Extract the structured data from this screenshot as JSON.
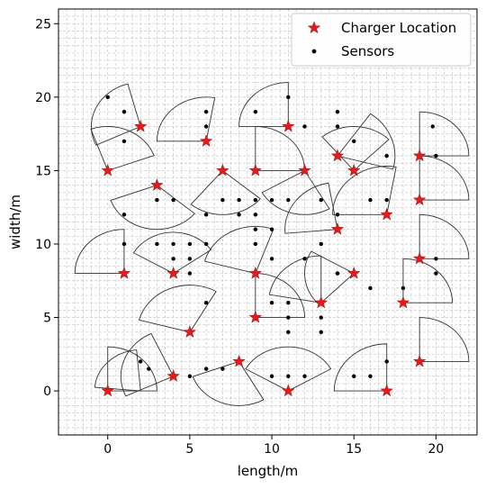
{
  "chart_data": {
    "type": "scatter",
    "title": "",
    "xlabel": "length/m",
    "ylabel": "width/m",
    "xlim": [
      -3,
      22.5
    ],
    "ylim": [
      -3,
      26
    ],
    "xticks": [
      0,
      5,
      10,
      15,
      20
    ],
    "yticks": [
      0,
      5,
      10,
      15,
      20,
      25
    ],
    "grid": true,
    "minor_grid": true,
    "legend_position": "top-right",
    "colors": {
      "charger": "#e41a1c",
      "sensor": "#000000",
      "sector": "#333333",
      "grid": "#c8c8c8"
    },
    "series": [
      {
        "name": "Charger Location",
        "marker": "star",
        "points": [
          [
            0,
            0
          ],
          [
            4,
            1
          ],
          [
            8,
            2
          ],
          [
            11,
            0
          ],
          [
            17,
            0
          ],
          [
            19,
            2
          ],
          [
            5,
            4
          ],
          [
            9,
            5
          ],
          [
            13,
            6
          ],
          [
            18,
            6
          ],
          [
            1,
            8
          ],
          [
            4,
            8
          ],
          [
            9,
            8
          ],
          [
            15,
            8
          ],
          [
            19,
            9
          ],
          [
            14,
            11
          ],
          [
            17,
            12
          ],
          [
            3,
            14
          ],
          [
            19,
            13
          ],
          [
            0,
            15
          ],
          [
            7,
            15
          ],
          [
            9,
            15
          ],
          [
            12,
            15
          ],
          [
            15,
            15
          ],
          [
            14,
            16
          ],
          [
            19,
            16
          ],
          [
            6,
            17
          ],
          [
            11,
            18
          ],
          [
            2,
            18
          ]
        ]
      },
      {
        "name": "Sensors",
        "marker": "dot",
        "points": [
          [
            2,
            2
          ],
          [
            2.5,
            1.5
          ],
          [
            5,
            1
          ],
          [
            6,
            1.5
          ],
          [
            7,
            1.5
          ],
          [
            10,
            1
          ],
          [
            11,
            1
          ],
          [
            12,
            1
          ],
          [
            15,
            1
          ],
          [
            16,
            1
          ],
          [
            17,
            2
          ],
          [
            19,
            2
          ],
          [
            0,
            20
          ],
          [
            1,
            19
          ],
          [
            1,
            17
          ],
          [
            6,
            18
          ],
          [
            6,
            19
          ],
          [
            11,
            20
          ],
          [
            9,
            19
          ],
          [
            12,
            18
          ],
          [
            14,
            19
          ],
          [
            14,
            18
          ],
          [
            15,
            17
          ],
          [
            17,
            16
          ],
          [
            19.8,
            18
          ],
          [
            20,
            16
          ],
          [
            3,
            13
          ],
          [
            4,
            13
          ],
          [
            1,
            12
          ],
          [
            9,
            13
          ],
          [
            10,
            13
          ],
          [
            11,
            13
          ],
          [
            13,
            13
          ],
          [
            14,
            12
          ],
          [
            16,
            13
          ],
          [
            17,
            13
          ],
          [
            7,
            13
          ],
          [
            8,
            13
          ],
          [
            9,
            12
          ],
          [
            8,
            12
          ],
          [
            6,
            12
          ],
          [
            1,
            10
          ],
          [
            4,
            10
          ],
          [
            5,
            10
          ],
          [
            6,
            10
          ],
          [
            4,
            9
          ],
          [
            5,
            9
          ],
          [
            3,
            10
          ],
          [
            9,
            11
          ],
          [
            10,
            11
          ],
          [
            9,
            10
          ],
          [
            10,
            9
          ],
          [
            12,
            9
          ],
          [
            13,
            10
          ],
          [
            14,
            8
          ],
          [
            5,
            8
          ],
          [
            6,
            6
          ],
          [
            10,
            6
          ],
          [
            11,
            6
          ],
          [
            11,
            5
          ],
          [
            11,
            4
          ],
          [
            13,
            5
          ],
          [
            13,
            4
          ],
          [
            14,
            8
          ],
          [
            16,
            7
          ],
          [
            18,
            7
          ],
          [
            20,
            9
          ],
          [
            20,
            8
          ]
        ]
      }
    ],
    "sectors": [
      {
        "cx": 0,
        "cy": 0,
        "r": 3,
        "a1": 0,
        "a2": 90
      },
      {
        "cx": 2,
        "cy": 0,
        "r": 2.8,
        "a1": 95,
        "a2": 175
      },
      {
        "cx": 4,
        "cy": 1,
        "r": 3.2,
        "a1": 115,
        "a2": 205
      },
      {
        "cx": 8,
        "cy": 2,
        "r": 3.0,
        "a1": 200,
        "a2": 300
      },
      {
        "cx": 11,
        "cy": 0,
        "r": 3.0,
        "a1": 30,
        "a2": 150
      },
      {
        "cx": 17,
        "cy": 0,
        "r": 3.2,
        "a1": 90,
        "a2": 180
      },
      {
        "cx": 19,
        "cy": 2,
        "r": 3.0,
        "a1": 0,
        "a2": 90
      },
      {
        "cx": 5,
        "cy": 4,
        "r": 3.2,
        "a1": 60,
        "a2": 165
      },
      {
        "cx": 9,
        "cy": 5,
        "r": 3.0,
        "a1": 0,
        "a2": 90
      },
      {
        "cx": 13,
        "cy": 6,
        "r": 3.2,
        "a1": 90,
        "a2": 170
      },
      {
        "cx": 18,
        "cy": 6,
        "r": 3.0,
        "a1": 0,
        "a2": 90
      },
      {
        "cx": 1,
        "cy": 8,
        "r": 3.0,
        "a1": 90,
        "a2": 180
      },
      {
        "cx": 4,
        "cy": 8,
        "r": 2.8,
        "a1": 35,
        "a2": 150
      },
      {
        "cx": 9,
        "cy": 8,
        "r": 3.2,
        "a1": 70,
        "a2": 165
      },
      {
        "cx": 15,
        "cy": 8,
        "r": 3.0,
        "a1": 150,
        "a2": 225
      },
      {
        "cx": 19,
        "cy": 9,
        "r": 3.0,
        "a1": 0,
        "a2": 90
      },
      {
        "cx": 14,
        "cy": 11,
        "r": 3.2,
        "a1": 100,
        "a2": 185
      },
      {
        "cx": 17,
        "cy": 12,
        "r": 3.3,
        "a1": 80,
        "a2": 180
      },
      {
        "cx": 3,
        "cy": 14,
        "r": 3.0,
        "a1": 200,
        "a2": 320
      },
      {
        "cx": 19,
        "cy": 13,
        "r": 3.0,
        "a1": 0,
        "a2": 90
      },
      {
        "cx": 0,
        "cy": 15,
        "r": 3.0,
        "a1": 20,
        "a2": 110
      },
      {
        "cx": 7,
        "cy": 15,
        "r": 3.0,
        "a1": 230,
        "a2": 320
      },
      {
        "cx": 9,
        "cy": 15,
        "r": 3.0,
        "a1": 0,
        "a2": 90
      },
      {
        "cx": 12,
        "cy": 15,
        "r": 3.0,
        "a1": 210,
        "a2": 300
      },
      {
        "cx": 15,
        "cy": 15,
        "r": 3.0,
        "a1": 45,
        "a2": 130
      },
      {
        "cx": 14,
        "cy": 16,
        "r": 3.5,
        "a1": 345,
        "a2": 415
      },
      {
        "cx": 19,
        "cy": 16,
        "r": 3.0,
        "a1": 0,
        "a2": 90
      },
      {
        "cx": 6,
        "cy": 17,
        "r": 3.0,
        "a1": 80,
        "a2": 180
      },
      {
        "cx": 11,
        "cy": 18,
        "r": 3.0,
        "a1": 90,
        "a2": 180
      },
      {
        "cx": 2,
        "cy": 18,
        "r": 3.0,
        "a1": 105,
        "a2": 205
      }
    ]
  }
}
